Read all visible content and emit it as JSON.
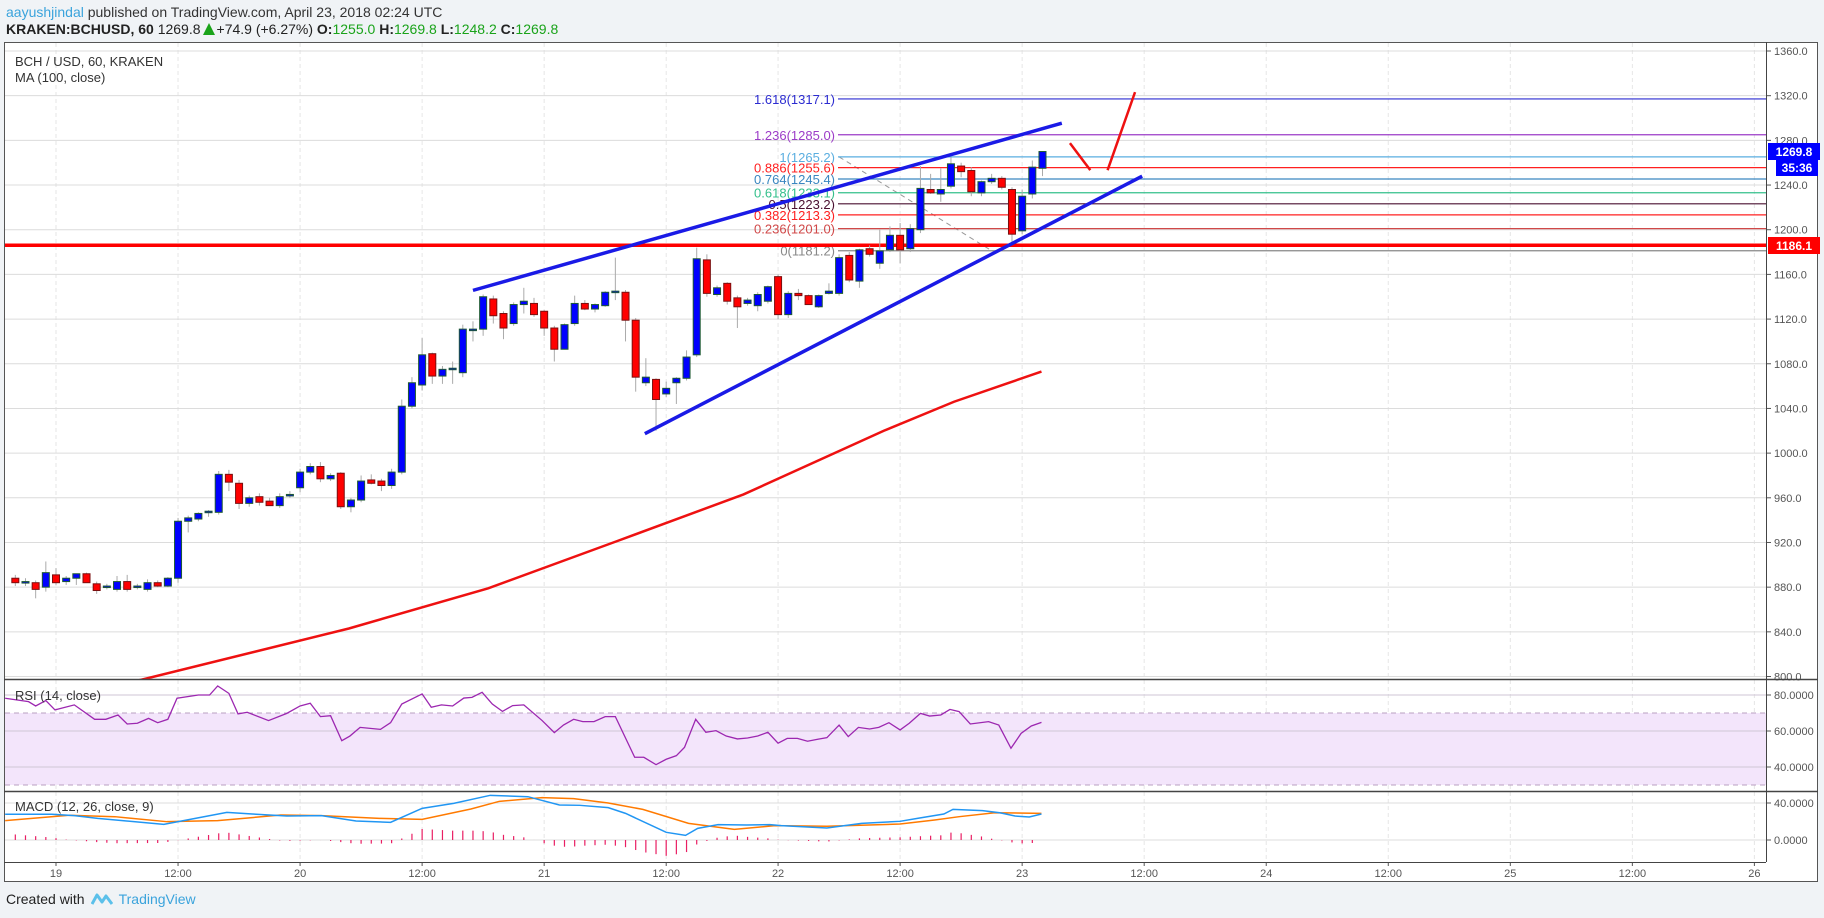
{
  "header": {
    "author": "aayushjindal",
    "published": "published on TradingView.com, April 23, 2018 02:24 UTC",
    "symbol": "KRAKEN:BCHUSD, 60",
    "last": "1269.8",
    "change": "+74.9 (+6.27%)",
    "o_label": "O:",
    "o": "1255.0",
    "h_label": "H:",
    "h": "1269.8",
    "l_label": "L:",
    "l": "1248.2",
    "c_label": "C:",
    "c": "1269.8"
  },
  "panels": {
    "main_title": "BCH / USD, 60, KRAKEN",
    "ma_label": "MA (100, close)",
    "rsi_label": "RSI (14, close)",
    "macd_label": "MACD (12, 26, close, 9)"
  },
  "axis": {
    "price_ticks": [
      "1360.0",
      "1320.0",
      "1280.0",
      "1240.0",
      "1200.0",
      "1160.0",
      "1120.0",
      "1080.0",
      "1040.0",
      "1000.0",
      "960.0",
      "920.0",
      "880.0",
      "840.0",
      "800.0"
    ],
    "rsi_ticks": [
      {
        "v": 80,
        "label": "80.0000"
      },
      {
        "v": 60,
        "label": "60.0000"
      },
      {
        "v": 40,
        "label": "40.0000"
      }
    ],
    "macd_ticks": [
      {
        "v": 40,
        "label": "40.0000"
      },
      {
        "v": 0,
        "label": "0.0000"
      }
    ],
    "time_ticks": [
      {
        "h": 0,
        "label": "19"
      },
      {
        "h": 12,
        "label": "12:00"
      },
      {
        "h": 24,
        "label": "20"
      },
      {
        "h": 36,
        "label": "12:00"
      },
      {
        "h": 48,
        "label": "21"
      },
      {
        "h": 60,
        "label": "12:00"
      },
      {
        "h": 71,
        "label": "22"
      },
      {
        "h": 83,
        "label": "12:00"
      },
      {
        "h": 95,
        "label": "23"
      },
      {
        "h": 107,
        "label": "12:00"
      },
      {
        "h": 119,
        "label": "24"
      },
      {
        "h": 131,
        "label": "12:00"
      },
      {
        "h": 143,
        "label": "25"
      },
      {
        "h": 155,
        "label": "12:00"
      },
      {
        "h": 167,
        "label": "26"
      }
    ]
  },
  "badges": {
    "last_price": "1269.8",
    "countdown": "35:36",
    "level": "1186.1"
  },
  "colors": {
    "up": "#0000ff",
    "up_border": "#1e5a32",
    "down": "#ff0000",
    "down_border": "#7a1010",
    "wick": "#aaaaaa",
    "ma": "#ee1111",
    "trend": "#1a1ae6",
    "level": "#ff0000",
    "rsi": "#9c27b0",
    "rsi_band": "#f3e5fb",
    "macd": "#2196f3",
    "signal": "#ff7a00",
    "hist": "#e91e63",
    "grid": "#dcdcdc",
    "vgrid": "#e6e6e6"
  },
  "footer": {
    "created_with": "Created with",
    "brand": "TradingView"
  },
  "chart_data": {
    "type": "candlestick",
    "title": "BCH / USD, 60, KRAKEN",
    "x_unit": "hours from Apr 19 00:00 UTC",
    "ylim": [
      790,
      1370
    ],
    "start_hour": -4,
    "candles_ohlc": [
      [
        888,
        891,
        881,
        884
      ],
      [
        884,
        888,
        881,
        885
      ],
      [
        884,
        886,
        870,
        878
      ],
      [
        880,
        903,
        876,
        893
      ],
      [
        891,
        897,
        882,
        884
      ],
      [
        885,
        890,
        882,
        888
      ],
      [
        888,
        892,
        882,
        892
      ],
      [
        892,
        893,
        884,
        884
      ],
      [
        883,
        885,
        874,
        877
      ],
      [
        880,
        883,
        878,
        881
      ],
      [
        878,
        890,
        876,
        885
      ],
      [
        885,
        891,
        876,
        878
      ],
      [
        880,
        883,
        878,
        881
      ],
      [
        878,
        887,
        876,
        884
      ],
      [
        884,
        886,
        880,
        881
      ],
      [
        881,
        889,
        880,
        888
      ],
      [
        888,
        942,
        884,
        939
      ],
      [
        939,
        944,
        929,
        942
      ],
      [
        941,
        947,
        939,
        946
      ],
      [
        947,
        949,
        943,
        948
      ],
      [
        947,
        984,
        945,
        981
      ],
      [
        981,
        985,
        966,
        974
      ],
      [
        973,
        976,
        950,
        955
      ],
      [
        955,
        962,
        952,
        960
      ],
      [
        961,
        964,
        953,
        956
      ],
      [
        957,
        960,
        953,
        953
      ],
      [
        953,
        964,
        951,
        961
      ],
      [
        962,
        966,
        960,
        963
      ],
      [
        969,
        986,
        965,
        983
      ],
      [
        983,
        991,
        981,
        988
      ],
      [
        988,
        992,
        974,
        977
      ],
      [
        977,
        982,
        975,
        980
      ],
      [
        982,
        983,
        950,
        952
      ],
      [
        952,
        960,
        947,
        958
      ],
      [
        958,
        980,
        956,
        975
      ],
      [
        976,
        981,
        972,
        973
      ],
      [
        975,
        977,
        966,
        971
      ],
      [
        971,
        986,
        968,
        983
      ],
      [
        983,
        1048,
        981,
        1042
      ],
      [
        1042,
        1068,
        1040,
        1063
      ],
      [
        1061,
        1103,
        1056,
        1088
      ],
      [
        1089,
        1090,
        1062,
        1069
      ],
      [
        1069,
        1078,
        1062,
        1075
      ],
      [
        1076,
        1082,
        1062,
        1076
      ],
      [
        1072,
        1115,
        1068,
        1111
      ],
      [
        1110,
        1118,
        1100,
        1111
      ],
      [
        1111,
        1142,
        1105,
        1140
      ],
      [
        1138,
        1141,
        1116,
        1123
      ],
      [
        1125,
        1127,
        1102,
        1112
      ],
      [
        1116,
        1135,
        1114,
        1133
      ],
      [
        1133,
        1148,
        1125,
        1136
      ],
      [
        1134,
        1139,
        1122,
        1124
      ],
      [
        1127,
        1128,
        1105,
        1112
      ],
      [
        1112,
        1114,
        1082,
        1093
      ],
      [
        1093,
        1116,
        1093,
        1115
      ],
      [
        1116,
        1141,
        1114,
        1134
      ],
      [
        1134,
        1137,
        1128,
        1129
      ],
      [
        1129,
        1134,
        1126,
        1133
      ],
      [
        1132,
        1145,
        1131,
        1144
      ],
      [
        1145,
        1175,
        1137,
        1145
      ],
      [
        1144,
        1146,
        1100,
        1119
      ],
      [
        1119,
        1121,
        1055,
        1068
      ],
      [
        1063,
        1085,
        1060,
        1068
      ],
      [
        1066,
        1067,
        1020,
        1048
      ],
      [
        1053,
        1064,
        1050,
        1058
      ],
      [
        1063,
        1068,
        1044,
        1067
      ],
      [
        1067,
        1092,
        1065,
        1086
      ],
      [
        1088,
        1184,
        1086,
        1174
      ],
      [
        1173,
        1178,
        1140,
        1143
      ],
      [
        1142,
        1150,
        1140,
        1148
      ],
      [
        1152,
        1153,
        1133,
        1136
      ],
      [
        1139,
        1141,
        1112,
        1131
      ],
      [
        1134,
        1139,
        1132,
        1137
      ],
      [
        1132,
        1144,
        1127,
        1142
      ],
      [
        1136,
        1150,
        1134,
        1149
      ],
      [
        1158,
        1160,
        1120,
        1124
      ],
      [
        1124,
        1145,
        1121,
        1143
      ],
      [
        1143,
        1147,
        1137,
        1141
      ],
      [
        1141,
        1142,
        1133,
        1133
      ],
      [
        1131,
        1142,
        1130,
        1141
      ],
      [
        1143,
        1152,
        1142,
        1145
      ],
      [
        1143,
        1178,
        1141,
        1175
      ],
      [
        1177,
        1180,
        1153,
        1155
      ],
      [
        1154,
        1183,
        1148,
        1182
      ],
      [
        1183,
        1186,
        1176,
        1178
      ],
      [
        1170,
        1200,
        1165,
        1181
      ],
      [
        1182,
        1203,
        1180,
        1195
      ],
      [
        1195,
        1206,
        1170,
        1182
      ],
      [
        1183,
        1205,
        1180,
        1201
      ],
      [
        1200,
        1257,
        1197,
        1237
      ],
      [
        1236,
        1250,
        1232,
        1233
      ],
      [
        1232,
        1255,
        1225,
        1236
      ],
      [
        1239,
        1265,
        1237,
        1259
      ],
      [
        1257,
        1260,
        1247,
        1252
      ],
      [
        1253,
        1256,
        1230,
        1234
      ],
      [
        1233,
        1244,
        1230,
        1243
      ],
      [
        1243,
        1250,
        1241,
        1246
      ],
      [
        1246,
        1248,
        1236,
        1238
      ],
      [
        1236,
        1238,
        1187,
        1196
      ],
      [
        1199,
        1236,
        1196,
        1230
      ],
      [
        1232,
        1262,
        1228,
        1256
      ],
      [
        1255,
        1270,
        1248,
        1270
      ]
    ],
    "ma100": [
      [
        5,
        790
      ],
      [
        8.8,
        798
      ],
      [
        28.8,
        843
      ],
      [
        42.5,
        879
      ],
      [
        55.1,
        921
      ],
      [
        67.6,
        963
      ],
      [
        81.4,
        1020
      ],
      [
        88.3,
        1046
      ],
      [
        96.9,
        1073
      ]
    ],
    "support_level": 1186.1,
    "fib": {
      "anchor": [
        [
          77,
          1265.2
        ],
        [
          92,
          1181.2
        ]
      ],
      "levels": [
        {
          "label": "1.618(1317.1)",
          "price": 1317.1,
          "color": "#2b2bd0"
        },
        {
          "label": "1.236(1285.0)",
          "price": 1285.0,
          "color": "#9c3cc8"
        },
        {
          "label": "1(1265.2)",
          "price": 1265.2,
          "color": "#5aaee0"
        },
        {
          "label": "0.886(1255.6)",
          "price": 1255.6,
          "color": "#ff2020"
        },
        {
          "label": "0.764(1245.4)",
          "price": 1245.4,
          "color": "#3a86c0"
        },
        {
          "label": "0.618(1233.1)",
          "price": 1233.1,
          "color": "#35c08c"
        },
        {
          "label": "0.5(1223.2)",
          "price": 1223.2,
          "color": "#4a1030"
        },
        {
          "label": "0.382(1213.3)",
          "price": 1213.3,
          "color": "#ff2020"
        },
        {
          "label": "0.236(1201.0)",
          "price": 1201.0,
          "color": "#d04848"
        },
        {
          "label": "0(1181.2)",
          "price": 1181.2,
          "color": "#888888"
        }
      ]
    },
    "trendlines": [
      {
        "name": "upper-channel-line",
        "points": [
          [
            41,
            1145.7
          ],
          [
            98.9,
            1295.4
          ]
        ]
      },
      {
        "name": "lower-channel-line",
        "points": [
          [
            57.9,
            1017.4
          ],
          [
            106.8,
            1247.9
          ]
        ]
      }
    ],
    "arrows": [
      {
        "name": "projection-down",
        "points": [
          [
            99.7,
            1277.5
          ],
          [
            101.7,
            1253.3
          ]
        ]
      },
      {
        "name": "projection-up",
        "points": [
          [
            103.4,
            1253.3
          ],
          [
            106.1,
            1323.2
          ]
        ]
      }
    ],
    "rsi": [
      [
        -5,
        78.2
      ],
      [
        -2.7,
        76.3
      ],
      [
        -2,
        73.9
      ],
      [
        -1,
        76.9
      ],
      [
        -0.1,
        71.7
      ],
      [
        1.8,
        74.5
      ],
      [
        3.8,
        66.5
      ],
      [
        4.9,
        66.5
      ],
      [
        6.1,
        68.9
      ],
      [
        7,
        63.9
      ],
      [
        8,
        64.3
      ],
      [
        9.1,
        67
      ],
      [
        10,
        64.6
      ],
      [
        11,
        66.5
      ],
      [
        11.9,
        78.2
      ],
      [
        14,
        80
      ],
      [
        15.1,
        80
      ],
      [
        15.9,
        85
      ],
      [
        17,
        80.9
      ],
      [
        17.9,
        69.5
      ],
      [
        18.8,
        70.4
      ],
      [
        20.9,
        65.8
      ],
      [
        22.7,
        69.8
      ],
      [
        24,
        73.9
      ],
      [
        25,
        75.4
      ],
      [
        26,
        68
      ],
      [
        27,
        68.5
      ],
      [
        28.1,
        54.6
      ],
      [
        28.9,
        57.2
      ],
      [
        29.9,
        62
      ],
      [
        31.9,
        60.9
      ],
      [
        32.9,
        64.6
      ],
      [
        34,
        75
      ],
      [
        36,
        80.6
      ],
      [
        36.9,
        73.2
      ],
      [
        37.9,
        74.5
      ],
      [
        39,
        73.9
      ],
      [
        40.1,
        78.3
      ],
      [
        40.9,
        78.7
      ],
      [
        41.9,
        81.5
      ],
      [
        42.9,
        75
      ],
      [
        43.9,
        70.9
      ],
      [
        44.9,
        74.1
      ],
      [
        46,
        74.5
      ],
      [
        47.8,
        65.8
      ],
      [
        49,
        59.1
      ],
      [
        49.9,
        63.3
      ],
      [
        50.9,
        66.5
      ],
      [
        51.8,
        65.2
      ],
      [
        52.9,
        65.2
      ],
      [
        54,
        68
      ],
      [
        55,
        68
      ],
      [
        56.9,
        45.4
      ],
      [
        57.8,
        45.4
      ],
      [
        59,
        41.3
      ],
      [
        60,
        44.3
      ],
      [
        61,
        46.3
      ],
      [
        61.8,
        50.9
      ],
      [
        62.9,
        66.5
      ],
      [
        63.9,
        59.3
      ],
      [
        64.9,
        60.2
      ],
      [
        65.9,
        57.2
      ],
      [
        67,
        55.6
      ],
      [
        68,
        56.1
      ],
      [
        69,
        57.2
      ],
      [
        70,
        59.3
      ],
      [
        71,
        53.2
      ],
      [
        71.9,
        55.9
      ],
      [
        72.9,
        55.9
      ],
      [
        73.9,
        54.3
      ],
      [
        74.9,
        55.4
      ],
      [
        75.8,
        56.3
      ],
      [
        77,
        63.3
      ],
      [
        77.9,
        56.9
      ],
      [
        78.9,
        62
      ],
      [
        80,
        61.1
      ],
      [
        80.9,
        62
      ],
      [
        81.9,
        64.6
      ],
      [
        83,
        60.6
      ],
      [
        83.9,
        64.3
      ],
      [
        85,
        69.8
      ],
      [
        85.9,
        68.3
      ],
      [
        87,
        68.9
      ],
      [
        87.9,
        72
      ],
      [
        88.8,
        70.8
      ],
      [
        89.9,
        63.9
      ],
      [
        91.7,
        65.2
      ],
      [
        92.7,
        63.3
      ],
      [
        93.9,
        50.4
      ],
      [
        94.9,
        58.7
      ],
      [
        95.9,
        62.8
      ],
      [
        96.9,
        64.8
      ]
    ],
    "rsi_bands": [
      70,
      30
    ],
    "macd": [
      [
        -5,
        27.8
      ],
      [
        -0.4,
        27.8
      ],
      [
        1.8,
        26.3
      ],
      [
        4.1,
        23.4
      ],
      [
        10.6,
        16.9
      ],
      [
        13.7,
        23.4
      ],
      [
        16.8,
        29.9
      ],
      [
        19.3,
        28.1
      ],
      [
        22.7,
        25.9
      ],
      [
        26.1,
        26.3
      ],
      [
        29.5,
        20.5
      ],
      [
        32.9,
        19.1
      ],
      [
        36,
        34.2
      ],
      [
        39.1,
        39.6
      ],
      [
        42.7,
        48.3
      ],
      [
        46.4,
        46.8
      ],
      [
        49.5,
        37.8
      ],
      [
        51.5,
        37.5
      ],
      [
        54.3,
        35
      ],
      [
        56,
        28.8
      ],
      [
        60,
        8.3
      ],
      [
        61.9,
        5
      ],
      [
        63.1,
        12.6
      ],
      [
        65.1,
        16.6
      ],
      [
        67.9,
        16.2
      ],
      [
        70.2,
        16.6
      ],
      [
        71.3,
        15.5
      ],
      [
        75.8,
        13
      ],
      [
        79.2,
        18
      ],
      [
        83,
        20.2
      ],
      [
        84.7,
        23.4
      ],
      [
        87.3,
        28.1
      ],
      [
        88.2,
        33.1
      ],
      [
        91.1,
        31.7
      ],
      [
        92.8,
        29.5
      ],
      [
        94.3,
        25.9
      ],
      [
        95.7,
        24.9
      ],
      [
        96.9,
        28.1
      ]
    ],
    "signal": [
      [
        -5,
        20.9
      ],
      [
        1.3,
        26.7
      ],
      [
        5.8,
        25.2
      ],
      [
        10.9,
        19.8
      ],
      [
        15.9,
        20.9
      ],
      [
        22.1,
        27
      ],
      [
        26.1,
        26.3
      ],
      [
        31.8,
        23.4
      ],
      [
        36,
        22.3
      ],
      [
        40.8,
        33.5
      ],
      [
        43.6,
        41.8
      ],
      [
        47.8,
        45.8
      ],
      [
        50.9,
        44.7
      ],
      [
        54.3,
        40
      ],
      [
        57.7,
        33.1
      ],
      [
        62.2,
        18
      ],
      [
        66.7,
        11.5
      ],
      [
        70.7,
        15.5
      ],
      [
        75.8,
        14.8
      ],
      [
        83,
        17.3
      ],
      [
        86.4,
        21.6
      ],
      [
        88.8,
        25.2
      ],
      [
        92.3,
        29.5
      ],
      [
        96.9,
        28.8
      ]
    ]
  }
}
